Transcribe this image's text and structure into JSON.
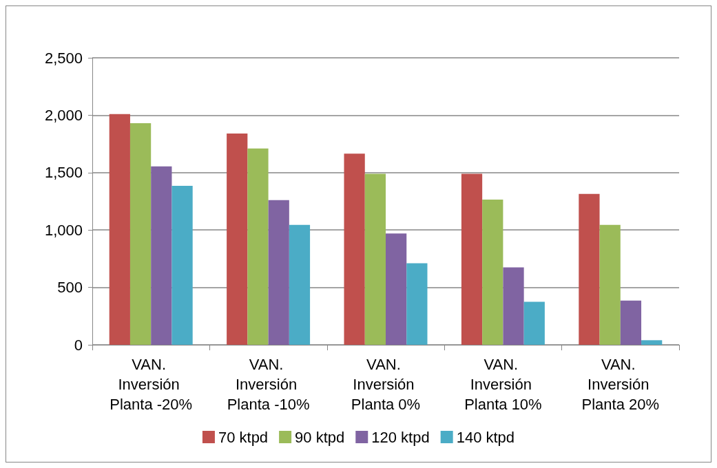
{
  "chart_data": {
    "type": "bar",
    "categories": [
      "VAN. Inversión Planta -20%",
      "VAN. Inversión Planta -10%",
      "VAN. Inversión Planta 0%",
      "VAN. Inversión Planta 10%",
      "VAN. Inversión Planta 20%"
    ],
    "series": [
      {
        "name": "70 ktpd",
        "color": "#c0504d",
        "values": [
          2010,
          1840,
          1665,
          1490,
          1315
        ]
      },
      {
        "name": "90 ktpd",
        "color": "#9bbb59",
        "values": [
          1930,
          1710,
          1490,
          1265,
          1045
        ]
      },
      {
        "name": "120 ktpd",
        "color": "#8064a2",
        "values": [
          1555,
          1260,
          970,
          675,
          385
        ]
      },
      {
        "name": "140 ktpd",
        "color": "#4bacc6",
        "values": [
          1385,
          1045,
          710,
          375,
          40
        ]
      }
    ],
    "ylim": [
      0,
      2500
    ],
    "yticks": [
      0,
      {
        "value": 500,
        "label": "500"
      },
      {
        "value": 1000,
        "label": "1,000"
      },
      {
        "value": 1500,
        "label": "1,500"
      },
      {
        "value": 2000,
        "label": "2,000"
      },
      {
        "value": 2500,
        "label": "2,500"
      }
    ],
    "grid": "y",
    "legend": "bottom"
  }
}
